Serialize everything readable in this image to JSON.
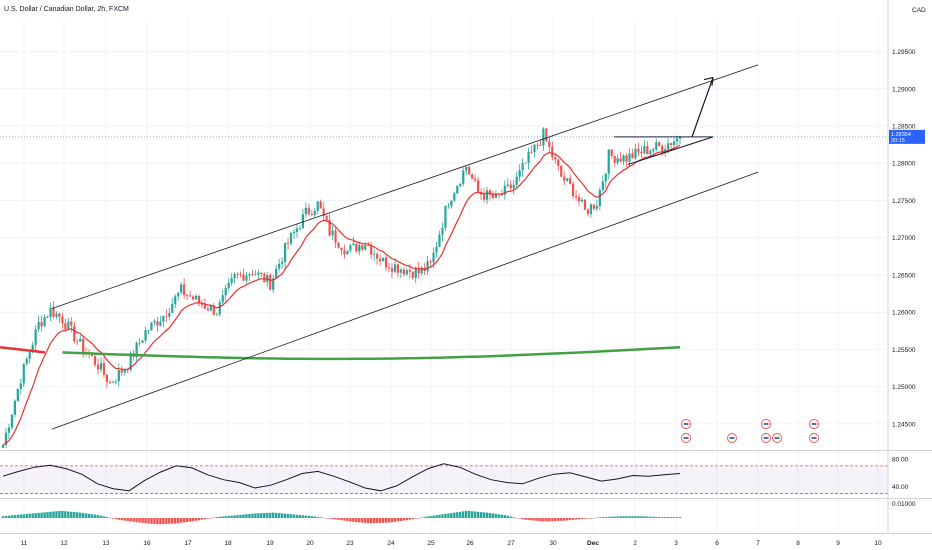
{
  "chart_title": "U.S. Dollar / Canadian Dollar, 2h, FXCM",
  "currency_label": "CAD",
  "colors": {
    "up": "#26a69a",
    "down": "#ef5350",
    "ema": "#e8312f",
    "ma_long_red": "#e8312f",
    "ma_long_green": "#43a047",
    "current_price": "#2962ff",
    "rsi_band": "#7e57c2"
  },
  "chart_data": [
    {
      "type": "candlestick",
      "title": "U.S. Dollar / Canadian Dollar, 2h, FXCM",
      "x_tick_labels": [
        "11",
        "12",
        "13",
        "16",
        "17",
        "18",
        "19",
        "20",
        "23",
        "24",
        "25",
        "26",
        "27",
        "30",
        "Dec",
        "2",
        "3",
        "6",
        "7",
        "8",
        "9",
        "10"
      ],
      "y_tick_labels": [
        "1.29500",
        "1.29000",
        "1.28500",
        "1.28000",
        "1.27500",
        "1.27000",
        "1.26500",
        "1.26000",
        "1.25500",
        "1.25000",
        "1.24500"
      ],
      "ylim": [
        1.2415,
        1.2995
      ],
      "current_price": 1.28354,
      "current_price_label": "1.28354",
      "current_price_sublabel": "20:15",
      "key_points_close": [
        [
          0,
          1.2422
        ],
        [
          6,
          1.2512
        ],
        [
          12,
          1.2584
        ],
        [
          16,
          1.2603
        ],
        [
          20,
          1.2591
        ],
        [
          26,
          1.2556
        ],
        [
          32,
          1.2529
        ],
        [
          36,
          1.2505
        ],
        [
          42,
          1.253
        ],
        [
          48,
          1.2574
        ],
        [
          54,
          1.2596
        ],
        [
          60,
          1.2629
        ],
        [
          66,
          1.2613
        ],
        [
          72,
          1.2601
        ],
        [
          78,
          1.2647
        ],
        [
          84,
          1.2655
        ],
        [
          90,
          1.2639
        ],
        [
          96,
          1.2693
        ],
        [
          102,
          1.2733
        ],
        [
          106,
          1.2745
        ],
        [
          110,
          1.2708
        ],
        [
          116,
          1.2682
        ],
        [
          122,
          1.2694
        ],
        [
          128,
          1.2668
        ],
        [
          134,
          1.2659
        ],
        [
          140,
          1.2653
        ],
        [
          144,
          1.2663
        ],
        [
          150,
          1.275
        ],
        [
          156,
          1.2796
        ],
        [
          160,
          1.2761
        ],
        [
          166,
          1.2752
        ],
        [
          172,
          1.2771
        ],
        [
          176,
          1.28
        ],
        [
          182,
          1.2838
        ],
        [
          188,
          1.2782
        ],
        [
          192,
          1.2764
        ],
        [
          196,
          1.2735
        ],
        [
          200,
          1.2748
        ],
        [
          204,
          1.281
        ],
        [
          210,
          1.2807
        ],
        [
          216,
          1.2817
        ],
        [
          222,
          1.2823
        ],
        [
          228,
          1.2835
        ]
      ],
      "channel_upper": [
        [
          1.2605,
          0
        ],
        [
          1.2932,
          225
        ]
      ],
      "channel_lower": [
        [
          1.2443,
          0
        ],
        [
          1.2788,
          225
        ]
      ],
      "triangle_resistance": 1.28354,
      "projection_target": 1.2915,
      "ema_short": "red",
      "ma_long": [
        1.2553,
        1.2538,
        1.2545
      ]
    },
    {
      "type": "line",
      "title": "",
      "y_tick_labels": [
        "80.00",
        "40.00"
      ],
      "ylim": [
        25,
        90
      ],
      "overbought": 70,
      "oversold": 30,
      "values_sample": [
        55,
        62,
        68,
        71,
        66,
        58,
        44,
        37,
        34,
        49,
        61,
        70,
        67,
        57,
        50,
        46,
        38,
        42,
        50,
        59,
        62,
        55,
        47,
        38,
        34,
        41,
        54,
        66,
        73,
        68,
        58,
        50,
        46,
        44,
        52,
        58,
        60,
        54,
        48,
        51,
        56,
        55,
        57,
        59
      ]
    },
    {
      "type": "bar",
      "title": "",
      "y_tick_labels": [
        "0.01000"
      ],
      "histogram_sample": [
        0.002,
        0.004,
        0.006,
        0.008,
        0.006,
        0.003,
        -0.002,
        -0.005,
        -0.007,
        -0.006,
        -0.003,
        0.001,
        0.003,
        0.005,
        0.006,
        0.004,
        0.002,
        -0.001,
        -0.004,
        -0.006,
        -0.005,
        -0.002,
        0.002,
        0.005,
        0.008,
        0.006,
        0.003,
        -0.002,
        -0.004,
        -0.003,
        -0.001,
        0.001,
        0.002,
        0.002,
        0.001,
        0.001
      ]
    }
  ]
}
